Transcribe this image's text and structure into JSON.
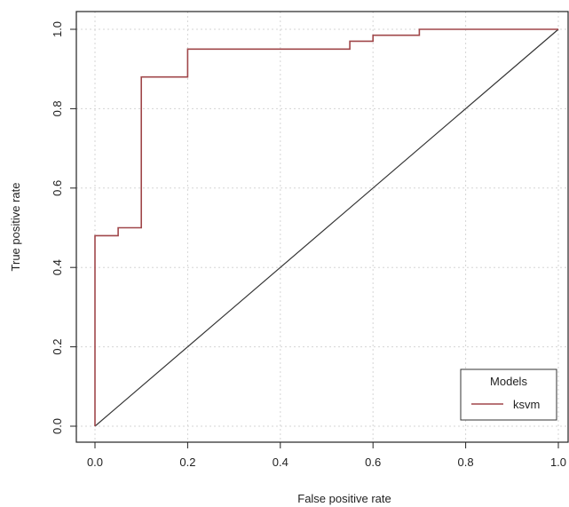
{
  "chart_data": {
    "type": "line",
    "title": "",
    "xlabel": "False positive rate",
    "ylabel": "True positive rate",
    "xlim": [
      0,
      1
    ],
    "ylim": [
      0,
      1
    ],
    "xticks": [
      "0.0",
      "0.2",
      "0.4",
      "0.6",
      "0.8",
      "1.0"
    ],
    "yticks": [
      "0.0",
      "0.2",
      "0.4",
      "0.6",
      "0.8",
      "1.0"
    ],
    "grid": true,
    "legend": {
      "title": "Models",
      "placement": "bottom-right"
    },
    "series": [
      {
        "name": "ksvm",
        "color": "#a0474a",
        "step": true,
        "x": [
          0,
          0,
          0.05,
          0.05,
          0.1,
          0.1,
          0.2,
          0.2,
          0.55,
          0.55,
          0.6,
          0.6,
          0.7,
          0.7,
          1.0
        ],
        "y": [
          0,
          0.48,
          0.48,
          0.5,
          0.5,
          0.88,
          0.88,
          0.95,
          0.95,
          0.97,
          0.97,
          0.985,
          0.985,
          1.0,
          1.0
        ]
      }
    ],
    "reference_line": {
      "x": [
        0,
        1
      ],
      "y": [
        0,
        1
      ],
      "color": "#333333"
    }
  }
}
